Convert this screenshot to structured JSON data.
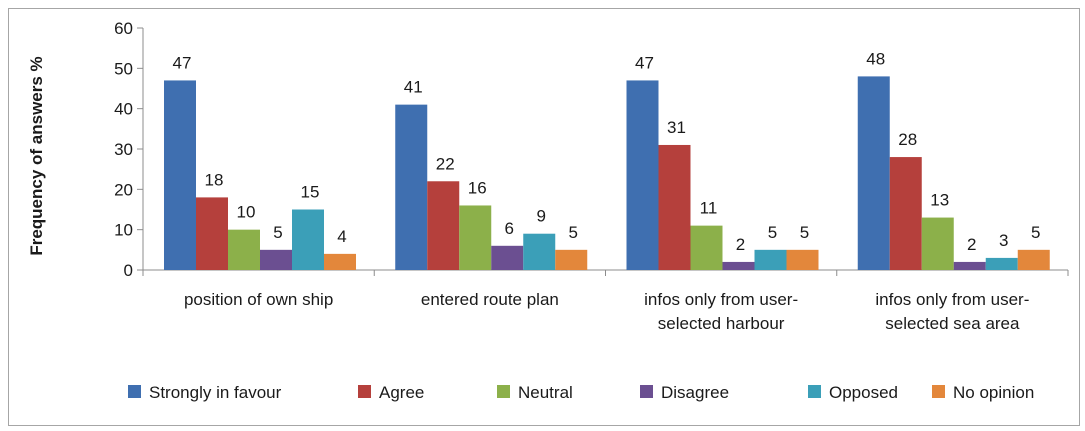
{
  "chart_data": {
    "type": "bar",
    "title": "",
    "xlabel": "",
    "ylabel": "Frequency of answers %",
    "ylim": [
      0,
      60
    ],
    "yticks": [
      0,
      10,
      20,
      30,
      40,
      50,
      60
    ],
    "grid": false,
    "legend_position": "bottom",
    "categories": [
      [
        "position of own ship"
      ],
      [
        "entered route plan"
      ],
      [
        "infos only from user-",
        "selected harbour"
      ],
      [
        "infos only from user-",
        "selected sea area"
      ]
    ],
    "series": [
      {
        "name": "Strongly in favour",
        "color": "#3f6fb0",
        "values": [
          47,
          41,
          47,
          48
        ]
      },
      {
        "name": "Agree",
        "color": "#b5403c",
        "values": [
          18,
          22,
          31,
          28
        ]
      },
      {
        "name": "Neutral",
        "color": "#8cb04a",
        "values": [
          10,
          16,
          11,
          13
        ]
      },
      {
        "name": "Disagree",
        "color": "#6b4f91",
        "values": [
          5,
          6,
          2,
          2
        ]
      },
      {
        "name": "Opposed",
        "color": "#3b9fb8",
        "values": [
          15,
          9,
          5,
          3
        ]
      },
      {
        "name": "No opinion",
        "color": "#e3873b",
        "values": [
          4,
          5,
          5,
          5
        ]
      }
    ]
  }
}
